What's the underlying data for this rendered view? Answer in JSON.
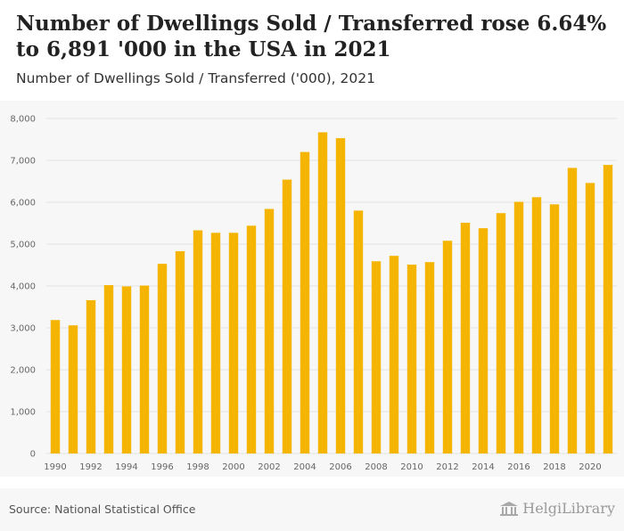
{
  "header": {
    "title": "Number of Dwellings Sold / Transferred rose 6.64% to 6,891 '000 in the USA in 2021",
    "subtitle": "Number of Dwellings Sold / Transferred ('000), 2021"
  },
  "footer": {
    "source": "Source: National Statistical Office",
    "brand": "HelgiLibrary",
    "brand_icon": "library-building-icon"
  },
  "colors": {
    "bar": "#f5b400",
    "grid": "#e3e3e3",
    "axis_text": "#666666",
    "plot_bg": "#f7f7f7"
  },
  "chart_data": {
    "type": "bar",
    "title": "Number of Dwellings Sold / Transferred ('000), 2021",
    "xlabel": "",
    "ylabel": "",
    "ylim": [
      0,
      8000
    ],
    "y_ticks": [
      0,
      1000,
      2000,
      3000,
      4000,
      5000,
      6000,
      7000,
      8000
    ],
    "y_tick_labels": [
      "0",
      "1,000",
      "2,000",
      "3,000",
      "4,000",
      "5,000",
      "6,000",
      "7,000",
      "8,000"
    ],
    "grid": true,
    "categories": [
      "1990",
      "1991",
      "1992",
      "1993",
      "1994",
      "1995",
      "1996",
      "1997",
      "1998",
      "1999",
      "2000",
      "2001",
      "2002",
      "2003",
      "2004",
      "2005",
      "2006",
      "2007",
      "2008",
      "2009",
      "2010",
      "2011",
      "2012",
      "2013",
      "2014",
      "2015",
      "2016",
      "2017",
      "2018",
      "2019",
      "2020",
      "2021"
    ],
    "x_tick_labels": [
      "1990",
      "",
      "1992",
      "",
      "1994",
      "",
      "1996",
      "",
      "1998",
      "",
      "2000",
      "",
      "2002",
      "",
      "2004",
      "",
      "2006",
      "",
      "2008",
      "",
      "2010",
      "",
      "2012",
      "",
      "2014",
      "",
      "2016",
      "",
      "2018",
      "",
      "2020",
      ""
    ],
    "values": [
      3186,
      3060,
      3660,
      4020,
      3990,
      4010,
      4530,
      4830,
      5330,
      5270,
      5270,
      5440,
      5840,
      6540,
      7200,
      7670,
      7530,
      5800,
      4590,
      4720,
      4510,
      4570,
      5080,
      5510,
      5380,
      5740,
      6010,
      6120,
      5950,
      6820,
      6460,
      6891
    ]
  }
}
